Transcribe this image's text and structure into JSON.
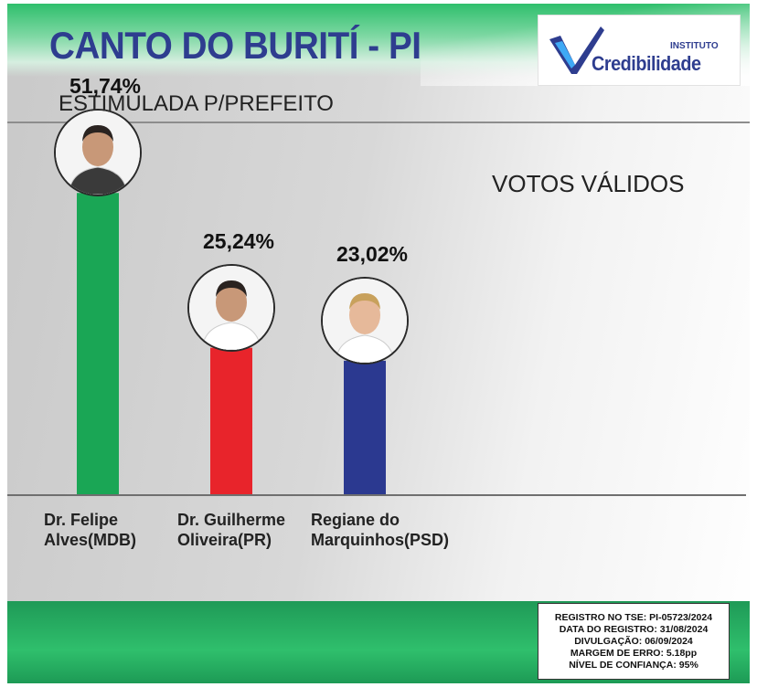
{
  "header": {
    "title": "CANTO DO BURITÍ - PI",
    "logo": {
      "small": "INSTITUTO",
      "name": "Credibilidade"
    }
  },
  "subtitle": "ESTIMULADA P/PREFEITO",
  "votes_label": "VOTOS VÁLIDOS",
  "chart_data": {
    "type": "bar",
    "title": "ESTIMULADA P/PREFEITO",
    "categories": [
      "Dr. Felipe Alves(MDB)",
      "Dr. Guilherme Oliveira(PR)",
      "Regiane do Marquinhos(PSD)"
    ],
    "values": [
      51.74,
      25.24,
      23.02
    ],
    "value_labels": [
      "51,74%",
      "25,24%",
      "23,02%"
    ],
    "category_labels": [
      "Dr. Felipe\nAlves(MDB)",
      "Dr. Guilherme\nOliveira(PR)",
      "Regiane do\nMarquinhos(PSD)"
    ],
    "colors": [
      "#1aa655",
      "#e8242b",
      "#2b3990"
    ],
    "ylim": [
      0,
      56
    ],
    "grid": false,
    "legend": "none",
    "xlabel": "",
    "ylabel": ""
  },
  "info": {
    "lines": [
      "REGISTRO NO TSE: PI-05723/2024",
      "DATA DO REGISTRO: 31/08/2024",
      "DIVULGAÇÃO: 06/09/2024",
      "MARGEM DE ERRO: 5.18pp",
      "NÍVEL DE CONFIANÇA: 95%"
    ]
  }
}
